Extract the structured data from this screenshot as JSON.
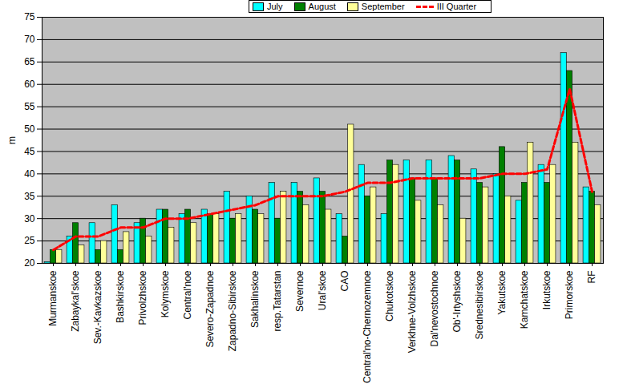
{
  "chart_data": {
    "type": "bar",
    "y_label": "m",
    "categories": [
      "Murmanskoe",
      "Zabaykal'skoe",
      "Sev.-Kavkazskoe",
      "Bashkirskoe",
      "Privolzhskoe",
      "Kolymskoe",
      "Central'noe",
      "Severo-Zapadnoe",
      "Zapadno-Sibirskoe",
      "Sakhalinskoe",
      "resp.Tatarstan",
      "Severnoe",
      "Ural'skoe",
      "CAO",
      "Central'no-Chernozemnoe",
      "Chukotskoe",
      "Verkhne-Volzhskoe",
      "Dal'nevostochnoe",
      "Ob'-Irtyshskoe",
      "Srednesibirskoe",
      "Yakutskoe",
      "Kamchatskoe",
      "Irkutskoe",
      "Primorskoe",
      "RF"
    ],
    "series": [
      {
        "name": "July",
        "type": "bar",
        "color": "#00ffff",
        "values": [
          20.3,
          26,
          29,
          33,
          29,
          32,
          31,
          32,
          36,
          35,
          38,
          38,
          39,
          31,
          42,
          31,
          43,
          43,
          44,
          41,
          40,
          34,
          42,
          67,
          37
        ]
      },
      {
        "name": "August",
        "type": "bar",
        "color": "#008000",
        "values": [
          23,
          29,
          23,
          23,
          30,
          32,
          32,
          31,
          30,
          32,
          30,
          36,
          36,
          26,
          35,
          43,
          39,
          39,
          43,
          38,
          46,
          38,
          38,
          63,
          36
        ]
      },
      {
        "name": "September",
        "type": "bar",
        "color": "#ffff99",
        "values": [
          23,
          24,
          25,
          27,
          26,
          28,
          29,
          31,
          31,
          31,
          36,
          33,
          32,
          51,
          37,
          42,
          34,
          33,
          30,
          37,
          35,
          47,
          42,
          47,
          33
        ]
      },
      {
        "name": "III Quarter",
        "type": "line",
        "line_style": "dashed",
        "color": "#ff0000",
        "values": [
          23,
          26,
          26,
          28,
          28,
          30,
          30,
          31,
          32,
          33,
          35,
          35,
          35,
          36,
          38,
          38,
          39,
          39,
          39,
          39,
          40,
          40,
          41,
          59,
          36
        ]
      }
    ],
    "ylim": [
      20,
      75
    ],
    "yticks": [
      20,
      25,
      30,
      35,
      40,
      45,
      50,
      55,
      60,
      65,
      70,
      75
    ],
    "grid": true,
    "legend": "top"
  }
}
